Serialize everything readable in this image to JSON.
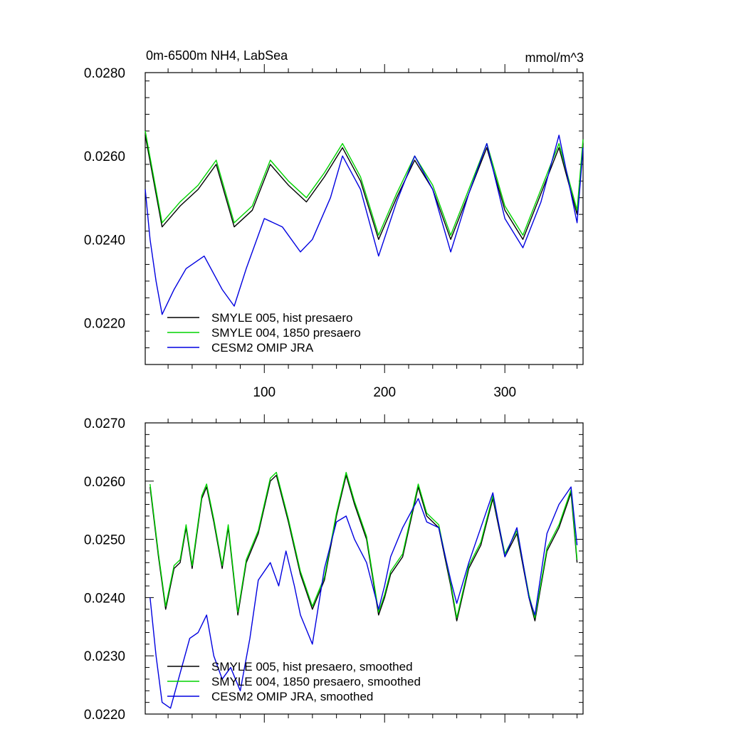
{
  "figure": {
    "title_left": "0m-6500m NH4, LabSea",
    "title_right": "mmol/m^3"
  },
  "colors": {
    "smyle005": "#000000",
    "smyle004": "#00d400",
    "omip": "#0000e0",
    "frame": "#000000"
  },
  "chart_data": [
    {
      "type": "line",
      "title": "0m-6500m NH4, LabSea",
      "units": "mmol/m^3",
      "xlim": [
        1,
        365
      ],
      "ylim": [
        0.021,
        0.028
      ],
      "yticks": [
        0.022,
        0.024,
        0.026,
        0.028
      ],
      "ytick_labels": [
        "0.0220",
        "0.0240",
        "0.0260",
        "0.0280"
      ],
      "xticks": [
        100,
        200,
        300
      ],
      "xtick_labels": [
        "100",
        "200",
        "300"
      ],
      "legend": [
        "SMYLE 005, hist presaero",
        "SMYLE 004, 1850 presaero",
        "CESM2 OMIP JRA"
      ],
      "legend_placement": "bottom-left",
      "series": [
        {
          "name": "SMYLE 005, hist presaero",
          "color": "#000000",
          "x": [
            1,
            15,
            30,
            45,
            60,
            75,
            90,
            105,
            120,
            135,
            150,
            165,
            180,
            195,
            210,
            225,
            240,
            255,
            270,
            285,
            300,
            315,
            330,
            345,
            360,
            365
          ],
          "values": [
            0.0265,
            0.0243,
            0.0248,
            0.0252,
            0.0258,
            0.0243,
            0.0247,
            0.0258,
            0.0253,
            0.0249,
            0.0255,
            0.0262,
            0.0254,
            0.024,
            0.025,
            0.0259,
            0.0252,
            0.024,
            0.0251,
            0.0262,
            0.0247,
            0.024,
            0.0251,
            0.0262,
            0.0246,
            0.0263
          ]
        },
        {
          "name": "SMYLE 004, 1850 presaero",
          "color": "#00d400",
          "x": [
            1,
            15,
            30,
            45,
            60,
            75,
            90,
            105,
            120,
            135,
            150,
            165,
            180,
            195,
            210,
            225,
            240,
            255,
            270,
            285,
            300,
            315,
            330,
            345,
            360,
            365
          ],
          "values": [
            0.0266,
            0.0244,
            0.0249,
            0.0253,
            0.0259,
            0.0244,
            0.0248,
            0.0259,
            0.0254,
            0.025,
            0.0256,
            0.0263,
            0.0255,
            0.0241,
            0.0251,
            0.026,
            0.0253,
            0.0241,
            0.0252,
            0.0263,
            0.0248,
            0.0241,
            0.0252,
            0.0263,
            0.0247,
            0.0264
          ]
        },
        {
          "name": "CESM2 OMIP JRA",
          "color": "#0000e0",
          "x": [
            1,
            5,
            10,
            15,
            25,
            35,
            50,
            65,
            75,
            85,
            100,
            115,
            130,
            140,
            155,
            165,
            180,
            195,
            210,
            225,
            240,
            255,
            270,
            285,
            300,
            315,
            330,
            345,
            360,
            365
          ],
          "values": [
            0.0252,
            0.024,
            0.023,
            0.0222,
            0.0228,
            0.0233,
            0.0236,
            0.0228,
            0.0224,
            0.0233,
            0.0245,
            0.0243,
            0.0237,
            0.024,
            0.025,
            0.026,
            0.0252,
            0.0236,
            0.0249,
            0.026,
            0.0252,
            0.0237,
            0.0251,
            0.0263,
            0.0245,
            0.0238,
            0.0249,
            0.0265,
            0.0244,
            0.0262
          ]
        }
      ]
    },
    {
      "type": "line",
      "title": "",
      "xlim": [
        1,
        365
      ],
      "ylim": [
        0.022,
        0.027
      ],
      "yticks": [
        0.022,
        0.023,
        0.024,
        0.025,
        0.026,
        0.027
      ],
      "ytick_labels": [
        "0.0220",
        "0.0230",
        "0.0240",
        "0.0250",
        "0.0260",
        "0.0270"
      ],
      "xticks": [
        100,
        200,
        300
      ],
      "xtick_labels": [],
      "legend": [
        "SMYLE 005, hist presaero, smoothed",
        "SMYLE 004, 1850 presaero, smoothed",
        "CESM2 OMIP JRA, smoothed"
      ],
      "legend_placement": "bottom-left",
      "series": [
        {
          "name": "SMYLE 005, hist presaero, smoothed",
          "color": "#000000",
          "x": [
            5,
            12,
            18,
            25,
            30,
            35,
            40,
            48,
            52,
            58,
            65,
            70,
            78,
            85,
            95,
            105,
            110,
            120,
            130,
            140,
            150,
            160,
            168,
            175,
            185,
            195,
            200,
            205,
            215,
            228,
            235,
            245,
            255,
            260,
            270,
            280,
            290,
            300,
            310,
            320,
            325,
            335,
            345,
            355,
            360
          ],
          "values": [
            0.0259,
            0.0247,
            0.0238,
            0.0245,
            0.0246,
            0.0252,
            0.0245,
            0.0257,
            0.0259,
            0.0253,
            0.0245,
            0.0252,
            0.0237,
            0.0246,
            0.0251,
            0.026,
            0.0261,
            0.0253,
            0.0244,
            0.0238,
            0.0243,
            0.0254,
            0.0261,
            0.0256,
            0.025,
            0.0237,
            0.024,
            0.0244,
            0.0247,
            0.0259,
            0.0254,
            0.0252,
            0.0242,
            0.0236,
            0.0245,
            0.0249,
            0.0257,
            0.0247,
            0.0251,
            0.024,
            0.0236,
            0.0248,
            0.0252,
            0.0258,
            0.0246
          ]
        },
        {
          "name": "SMYLE 004, 1850 presaero, smoothed",
          "color": "#00d400",
          "x": [
            5,
            12,
            18,
            25,
            30,
            35,
            40,
            48,
            52,
            58,
            65,
            70,
            78,
            85,
            95,
            105,
            110,
            120,
            130,
            140,
            150,
            160,
            168,
            175,
            185,
            195,
            200,
            205,
            215,
            228,
            235,
            245,
            255,
            260,
            270,
            280,
            290,
            300,
            310,
            320,
            325,
            335,
            345,
            355,
            360
          ],
          "values": [
            0.02595,
            0.02475,
            0.02385,
            0.02455,
            0.02465,
            0.02525,
            0.02455,
            0.02575,
            0.02595,
            0.02535,
            0.02455,
            0.02525,
            0.02375,
            0.02465,
            0.02515,
            0.02605,
            0.02615,
            0.02535,
            0.02445,
            0.02385,
            0.02435,
            0.02545,
            0.02615,
            0.02565,
            0.02505,
            0.02375,
            0.02405,
            0.02445,
            0.02475,
            0.02595,
            0.02545,
            0.02525,
            0.02425,
            0.02365,
            0.02455,
            0.02495,
            0.02575,
            0.02475,
            0.02515,
            0.02405,
            0.02365,
            0.02485,
            0.02525,
            0.02585,
            0.02465
          ]
        },
        {
          "name": "CESM2 OMIP JRA, smoothed",
          "color": "#0000e0",
          "x": [
            5,
            10,
            15,
            22,
            30,
            38,
            45,
            52,
            58,
            65,
            72,
            80,
            88,
            95,
            105,
            112,
            118,
            125,
            130,
            140,
            150,
            160,
            168,
            175,
            185,
            195,
            200,
            205,
            215,
            228,
            235,
            245,
            255,
            260,
            270,
            280,
            290,
            300,
            310,
            320,
            325,
            335,
            345,
            355,
            360
          ],
          "values": [
            0.024,
            0.023,
            0.0222,
            0.0221,
            0.0227,
            0.0233,
            0.0234,
            0.0237,
            0.023,
            0.0226,
            0.0228,
            0.0224,
            0.0233,
            0.0243,
            0.0246,
            0.0242,
            0.0248,
            0.0242,
            0.0237,
            0.0232,
            0.0245,
            0.0253,
            0.0254,
            0.025,
            0.0246,
            0.0238,
            0.0242,
            0.0247,
            0.0252,
            0.0257,
            0.0253,
            0.0252,
            0.0243,
            0.0239,
            0.0246,
            0.0252,
            0.0258,
            0.0247,
            0.0252,
            0.024,
            0.0237,
            0.0251,
            0.0256,
            0.0259,
            0.0249
          ]
        }
      ]
    }
  ]
}
